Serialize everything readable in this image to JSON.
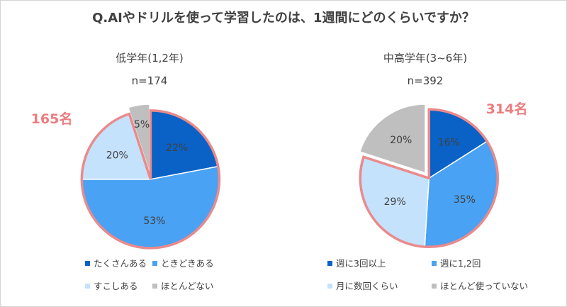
{
  "title": "Q.AIやドリルを使って学習したのは、1週間にどのくらいですか？",
  "chart_data": [
    {
      "type": "pie",
      "subtitle": "低学年(1,2年)",
      "n_label": "n=174",
      "highlight_label": "165名",
      "categories": [
        "たくさんある",
        "ときどきある",
        "すこしある",
        "ほとんどない"
      ],
      "values": [
        22,
        53,
        20,
        5
      ],
      "value_labels": [
        "22%",
        "53%",
        "20%",
        "5%"
      ],
      "colors": [
        "#0a62c6",
        "#49a2f3",
        "#c5e2fd",
        "#bfbfbf"
      ],
      "highlight_color": "#ea8a8c",
      "highlighted_slices": [
        0,
        1,
        2
      ],
      "legend_position": "bottom"
    },
    {
      "type": "pie",
      "subtitle": "中高学年(3~6年)",
      "n_label": "n=392",
      "highlight_label": "314名",
      "categories": [
        "週に3回以上",
        "週に1,2回",
        "月に数回くらい",
        "ほとんど使っていない"
      ],
      "values": [
        16,
        35,
        29,
        20
      ],
      "value_labels": [
        "16%",
        "35%",
        "29%",
        "20%"
      ],
      "colors": [
        "#0a62c6",
        "#49a2f3",
        "#c5e2fd",
        "#bfbfbf"
      ],
      "highlight_color": "#ea8a8c",
      "highlighted_slices": [
        0,
        1,
        2
      ],
      "legend_position": "bottom"
    }
  ]
}
